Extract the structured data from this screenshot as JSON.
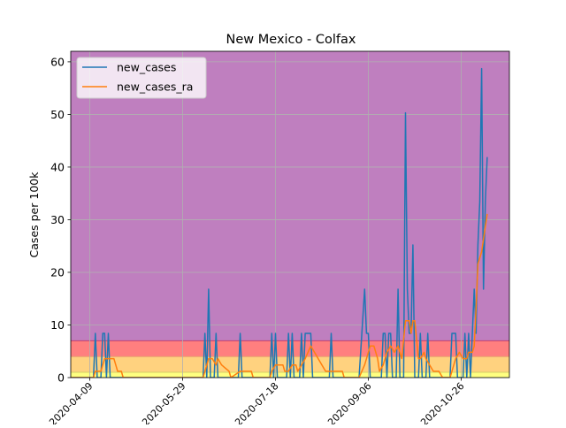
{
  "chart_data": {
    "type": "line",
    "title": "New Mexico - Colfax",
    "xlabel": "",
    "ylabel": "Cases per 100k",
    "ylim": [
      0,
      62
    ],
    "yticks": [
      0,
      10,
      20,
      30,
      40,
      50,
      60
    ],
    "xticks": [
      "2020-04-09",
      "2020-05-29",
      "2020-07-18",
      "2020-09-06",
      "2020-10-26"
    ],
    "grid": true,
    "legend_position": "upper left",
    "risk_bands": [
      {
        "from": 0,
        "to": 1,
        "color": "#ffff80"
      },
      {
        "from": 1,
        "to": 4,
        "color": "#ffd27f"
      },
      {
        "from": 4,
        "to": 7,
        "color": "#ff7f7f"
      },
      {
        "from": 7,
        "to": 62,
        "color": "#bf7fbf"
      }
    ],
    "series": [
      {
        "name": "new_cases",
        "color": "#1f77b4",
        "points": [
          [
            "2020-03-30",
            0
          ],
          [
            "2020-04-11",
            0
          ],
          [
            "2020-04-12",
            8.4
          ],
          [
            "2020-04-13",
            0
          ],
          [
            "2020-04-15",
            0
          ],
          [
            "2020-04-16",
            8.4
          ],
          [
            "2020-04-17",
            8.4
          ],
          [
            "2020-04-18",
            0
          ],
          [
            "2020-04-19",
            8.4
          ],
          [
            "2020-04-20",
            0
          ],
          [
            "2020-05-11",
            0
          ],
          [
            "2020-06-09",
            0
          ],
          [
            "2020-06-10",
            8.4
          ],
          [
            "2020-06-11",
            0
          ],
          [
            "2020-06-12",
            16.8
          ],
          [
            "2020-06-13",
            0
          ],
          [
            "2020-06-15",
            0
          ],
          [
            "2020-06-16",
            8.4
          ],
          [
            "2020-06-17",
            0
          ],
          [
            "2020-06-28",
            0
          ],
          [
            "2020-06-29",
            8.4
          ],
          [
            "2020-06-30",
            0
          ],
          [
            "2020-07-15",
            0
          ],
          [
            "2020-07-16",
            8.4
          ],
          [
            "2020-07-17",
            0
          ],
          [
            "2020-07-18",
            8.4
          ],
          [
            "2020-07-19",
            0
          ],
          [
            "2020-07-24",
            0
          ],
          [
            "2020-07-25",
            8.4
          ],
          [
            "2020-07-26",
            0
          ],
          [
            "2020-07-27",
            8.4
          ],
          [
            "2020-07-28",
            0
          ],
          [
            "2020-07-31",
            0
          ],
          [
            "2020-08-01",
            8.4
          ],
          [
            "2020-08-02",
            0
          ],
          [
            "2020-08-03",
            8.4
          ],
          [
            "2020-08-06",
            8.4
          ],
          [
            "2020-08-07",
            0
          ],
          [
            "2020-08-16",
            0
          ],
          [
            "2020-08-17",
            8.4
          ],
          [
            "2020-08-18",
            0
          ],
          [
            "2020-09-01",
            0
          ],
          [
            "2020-09-04",
            16.8
          ],
          [
            "2020-09-05",
            8.4
          ],
          [
            "2020-09-06",
            8.4
          ],
          [
            "2020-09-07",
            0
          ],
          [
            "2020-09-13",
            0
          ],
          [
            "2020-09-14",
            8.4
          ],
          [
            "2020-09-15",
            8.4
          ],
          [
            "2020-09-16",
            0
          ],
          [
            "2020-09-17",
            8.4
          ],
          [
            "2020-09-18",
            8.4
          ],
          [
            "2020-09-19",
            0
          ],
          [
            "2020-09-21",
            0
          ],
          [
            "2020-09-22",
            16.8
          ],
          [
            "2020-09-23",
            0
          ],
          [
            "2020-09-25",
            0
          ],
          [
            "2020-09-26",
            50.3
          ],
          [
            "2020-09-27",
            16.8
          ],
          [
            "2020-09-28",
            8.4
          ],
          [
            "2020-09-29",
            8.4
          ],
          [
            "2020-09-30",
            25.2
          ],
          [
            "2020-10-01",
            0
          ],
          [
            "2020-10-03",
            0
          ],
          [
            "2020-10-04",
            8.4
          ],
          [
            "2020-10-05",
            0
          ],
          [
            "2020-10-07",
            0
          ],
          [
            "2020-10-08",
            8.4
          ],
          [
            "2020-10-09",
            0
          ],
          [
            "2020-10-20",
            0
          ],
          [
            "2020-10-21",
            8.4
          ],
          [
            "2020-10-23",
            8.4
          ],
          [
            "2020-10-24",
            0
          ],
          [
            "2020-10-27",
            0
          ],
          [
            "2020-10-28",
            8.4
          ],
          [
            "2020-10-29",
            0
          ],
          [
            "2020-10-30",
            8.4
          ],
          [
            "2020-10-31",
            0
          ],
          [
            "2020-11-02",
            16.8
          ],
          [
            "2020-11-03",
            8.4
          ],
          [
            "2020-11-04",
            25.2
          ],
          [
            "2020-11-05",
            33.5
          ],
          [
            "2020-11-06",
            58.7
          ],
          [
            "2020-11-07",
            16.8
          ],
          [
            "2020-11-08",
            33.5
          ],
          [
            "2020-11-09",
            41.9
          ]
        ]
      },
      {
        "name": "new_cases_ra",
        "color": "#ff7f0e",
        "points": [
          [
            "2020-03-30",
            0
          ],
          [
            "2020-04-11",
            0
          ],
          [
            "2020-04-12",
            1.2
          ],
          [
            "2020-04-15",
            1.2
          ],
          [
            "2020-04-16",
            2.4
          ],
          [
            "2020-04-17",
            3.6
          ],
          [
            "2020-04-19",
            3.6
          ],
          [
            "2020-04-20",
            3.6
          ],
          [
            "2020-04-22",
            3.6
          ],
          [
            "2020-04-23",
            2.4
          ],
          [
            "2020-04-24",
            1.2
          ],
          [
            "2020-04-26",
            1.2
          ],
          [
            "2020-04-27",
            0
          ],
          [
            "2020-06-09",
            0
          ],
          [
            "2020-06-10",
            1.2
          ],
          [
            "2020-06-12",
            3.6
          ],
          [
            "2020-06-14",
            3.6
          ],
          [
            "2020-06-16",
            2.4
          ],
          [
            "2020-06-17",
            3.6
          ],
          [
            "2020-06-19",
            2.4
          ],
          [
            "2020-06-23",
            1.2
          ],
          [
            "2020-06-24",
            0
          ],
          [
            "2020-06-29",
            1.2
          ],
          [
            "2020-07-05",
            1.2
          ],
          [
            "2020-07-06",
            0
          ],
          [
            "2020-07-15",
            0
          ],
          [
            "2020-07-16",
            1.2
          ],
          [
            "2020-07-18",
            2.4
          ],
          [
            "2020-07-22",
            2.4
          ],
          [
            "2020-07-23",
            1.2
          ],
          [
            "2020-07-25",
            1.2
          ],
          [
            "2020-07-27",
            2.4
          ],
          [
            "2020-07-29",
            2.4
          ],
          [
            "2020-07-30",
            1.2
          ],
          [
            "2020-08-01",
            2.4
          ],
          [
            "2020-08-03",
            3.6
          ],
          [
            "2020-08-06",
            6.0
          ],
          [
            "2020-08-08",
            4.8
          ],
          [
            "2020-08-10",
            3.6
          ],
          [
            "2020-08-12",
            2.4
          ],
          [
            "2020-08-14",
            1.2
          ],
          [
            "2020-08-16",
            1.2
          ],
          [
            "2020-08-17",
            1.2
          ],
          [
            "2020-08-23",
            1.2
          ],
          [
            "2020-08-24",
            0
          ],
          [
            "2020-09-01",
            0
          ],
          [
            "2020-09-04",
            2.4
          ],
          [
            "2020-09-05",
            3.6
          ],
          [
            "2020-09-07",
            6.0
          ],
          [
            "2020-09-09",
            6.0
          ],
          [
            "2020-09-11",
            3.6
          ],
          [
            "2020-09-12",
            1.2
          ],
          [
            "2020-09-14",
            2.4
          ],
          [
            "2020-09-16",
            4.8
          ],
          [
            "2020-09-18",
            6.0
          ],
          [
            "2020-09-20",
            4.8
          ],
          [
            "2020-09-22",
            6.0
          ],
          [
            "2020-09-24",
            3.6
          ],
          [
            "2020-09-26",
            10.8
          ],
          [
            "2020-09-28",
            10.8
          ],
          [
            "2020-09-29",
            8.4
          ],
          [
            "2020-09-30",
            10.8
          ],
          [
            "2020-10-01",
            10.8
          ],
          [
            "2020-10-03",
            3.6
          ],
          [
            "2020-10-04",
            3.6
          ],
          [
            "2020-10-06",
            4.8
          ],
          [
            "2020-10-07",
            3.6
          ],
          [
            "2020-10-09",
            2.4
          ],
          [
            "2020-10-11",
            1.2
          ],
          [
            "2020-10-14",
            1.2
          ],
          [
            "2020-10-16",
            0
          ],
          [
            "2020-10-20",
            0
          ],
          [
            "2020-10-21",
            1.2
          ],
          [
            "2020-10-23",
            3.6
          ],
          [
            "2020-10-25",
            4.8
          ],
          [
            "2020-10-27",
            3.6
          ],
          [
            "2020-10-29",
            3.6
          ],
          [
            "2020-10-30",
            4.8
          ],
          [
            "2020-11-01",
            4.8
          ],
          [
            "2020-11-02",
            6.0
          ],
          [
            "2020-11-03",
            13.2
          ],
          [
            "2020-11-04",
            21.6
          ],
          [
            "2020-11-06",
            23.9
          ],
          [
            "2020-11-08",
            28.7
          ],
          [
            "2020-11-09",
            31.1
          ]
        ]
      }
    ]
  }
}
